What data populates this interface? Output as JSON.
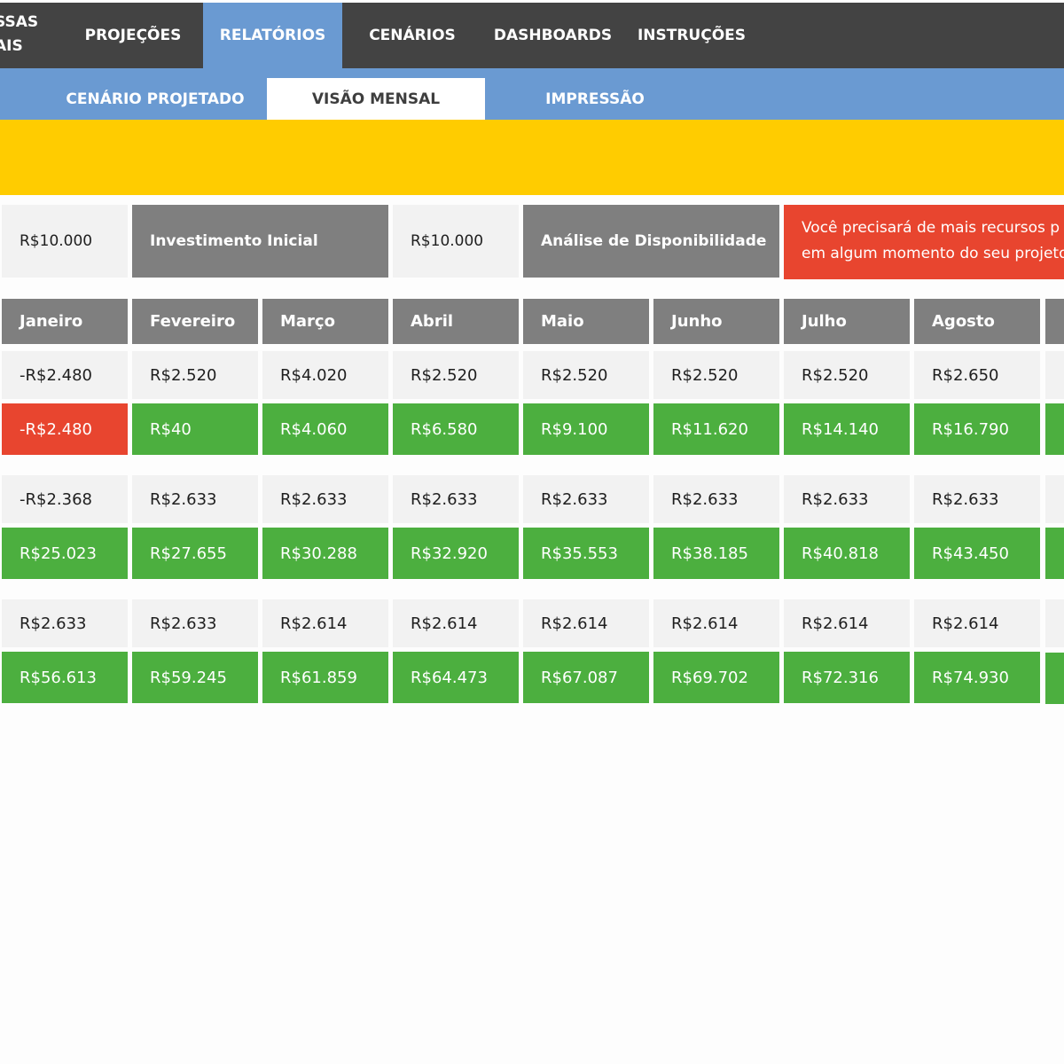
{
  "top_nav": {
    "partial_label_lines": [
      "SSAS",
      "AIS"
    ],
    "items": [
      {
        "label": "PROJEÇÕES",
        "active": false
      },
      {
        "label": "RELATÓRIOS",
        "active": true
      },
      {
        "label": "CENÁRIOS",
        "active": false
      },
      {
        "label": "DASHBOARDS",
        "active": false
      },
      {
        "label": "INSTRUÇÕES",
        "active": false
      }
    ]
  },
  "sub_nav": {
    "items": [
      {
        "label": "CENÁRIO PROJETADO",
        "active": false
      },
      {
        "label": "VISÃO MENSAL",
        "active": true
      },
      {
        "label": "IMPRESSÃO",
        "active": false
      }
    ]
  },
  "summary": {
    "initial_value": "R$10.000",
    "initial_label": "Investimento Inicial",
    "availability_value": "R$10.000",
    "availability_label": "Análise de Disponibilidade",
    "alert_line1": "Você precisará de mais recursos p",
    "alert_line2": "em algum momento do seu projeto"
  },
  "colors": {
    "nav_bg": "#434343",
    "accent_blue": "#6a9ad2",
    "banner_yellow": "#ffcc00",
    "header_gray": "#7f7f7f",
    "positive_green": "#4caf3f",
    "negative_red": "#e8452f"
  },
  "months": [
    "Janeiro",
    "Fevereiro",
    "Março",
    "Abril",
    "Maio",
    "Junho",
    "Julho",
    "Agosto"
  ],
  "blocks": [
    {
      "monthly": [
        "-R$2.480",
        "R$2.520",
        "R$4.020",
        "R$2.520",
        "R$2.520",
        "R$2.520",
        "R$2.520",
        "R$2.650"
      ],
      "cumulative": [
        "-R$2.480",
        "R$40",
        "R$4.060",
        "R$6.580",
        "R$9.100",
        "R$11.620",
        "R$14.140",
        "R$16.790"
      ]
    },
    {
      "monthly": [
        "-R$2.368",
        "R$2.633",
        "R$2.633",
        "R$2.633",
        "R$2.633",
        "R$2.633",
        "R$2.633",
        "R$2.633"
      ],
      "cumulative": [
        "R$25.023",
        "R$27.655",
        "R$30.288",
        "R$32.920",
        "R$35.553",
        "R$38.185",
        "R$40.818",
        "R$43.450"
      ]
    },
    {
      "monthly": [
        "R$2.633",
        "R$2.633",
        "R$2.614",
        "R$2.614",
        "R$2.614",
        "R$2.614",
        "R$2.614",
        "R$2.614"
      ],
      "cumulative": [
        "R$56.613",
        "R$59.245",
        "R$61.859",
        "R$64.473",
        "R$67.087",
        "R$69.702",
        "R$72.316",
        "R$74.930"
      ]
    }
  ]
}
